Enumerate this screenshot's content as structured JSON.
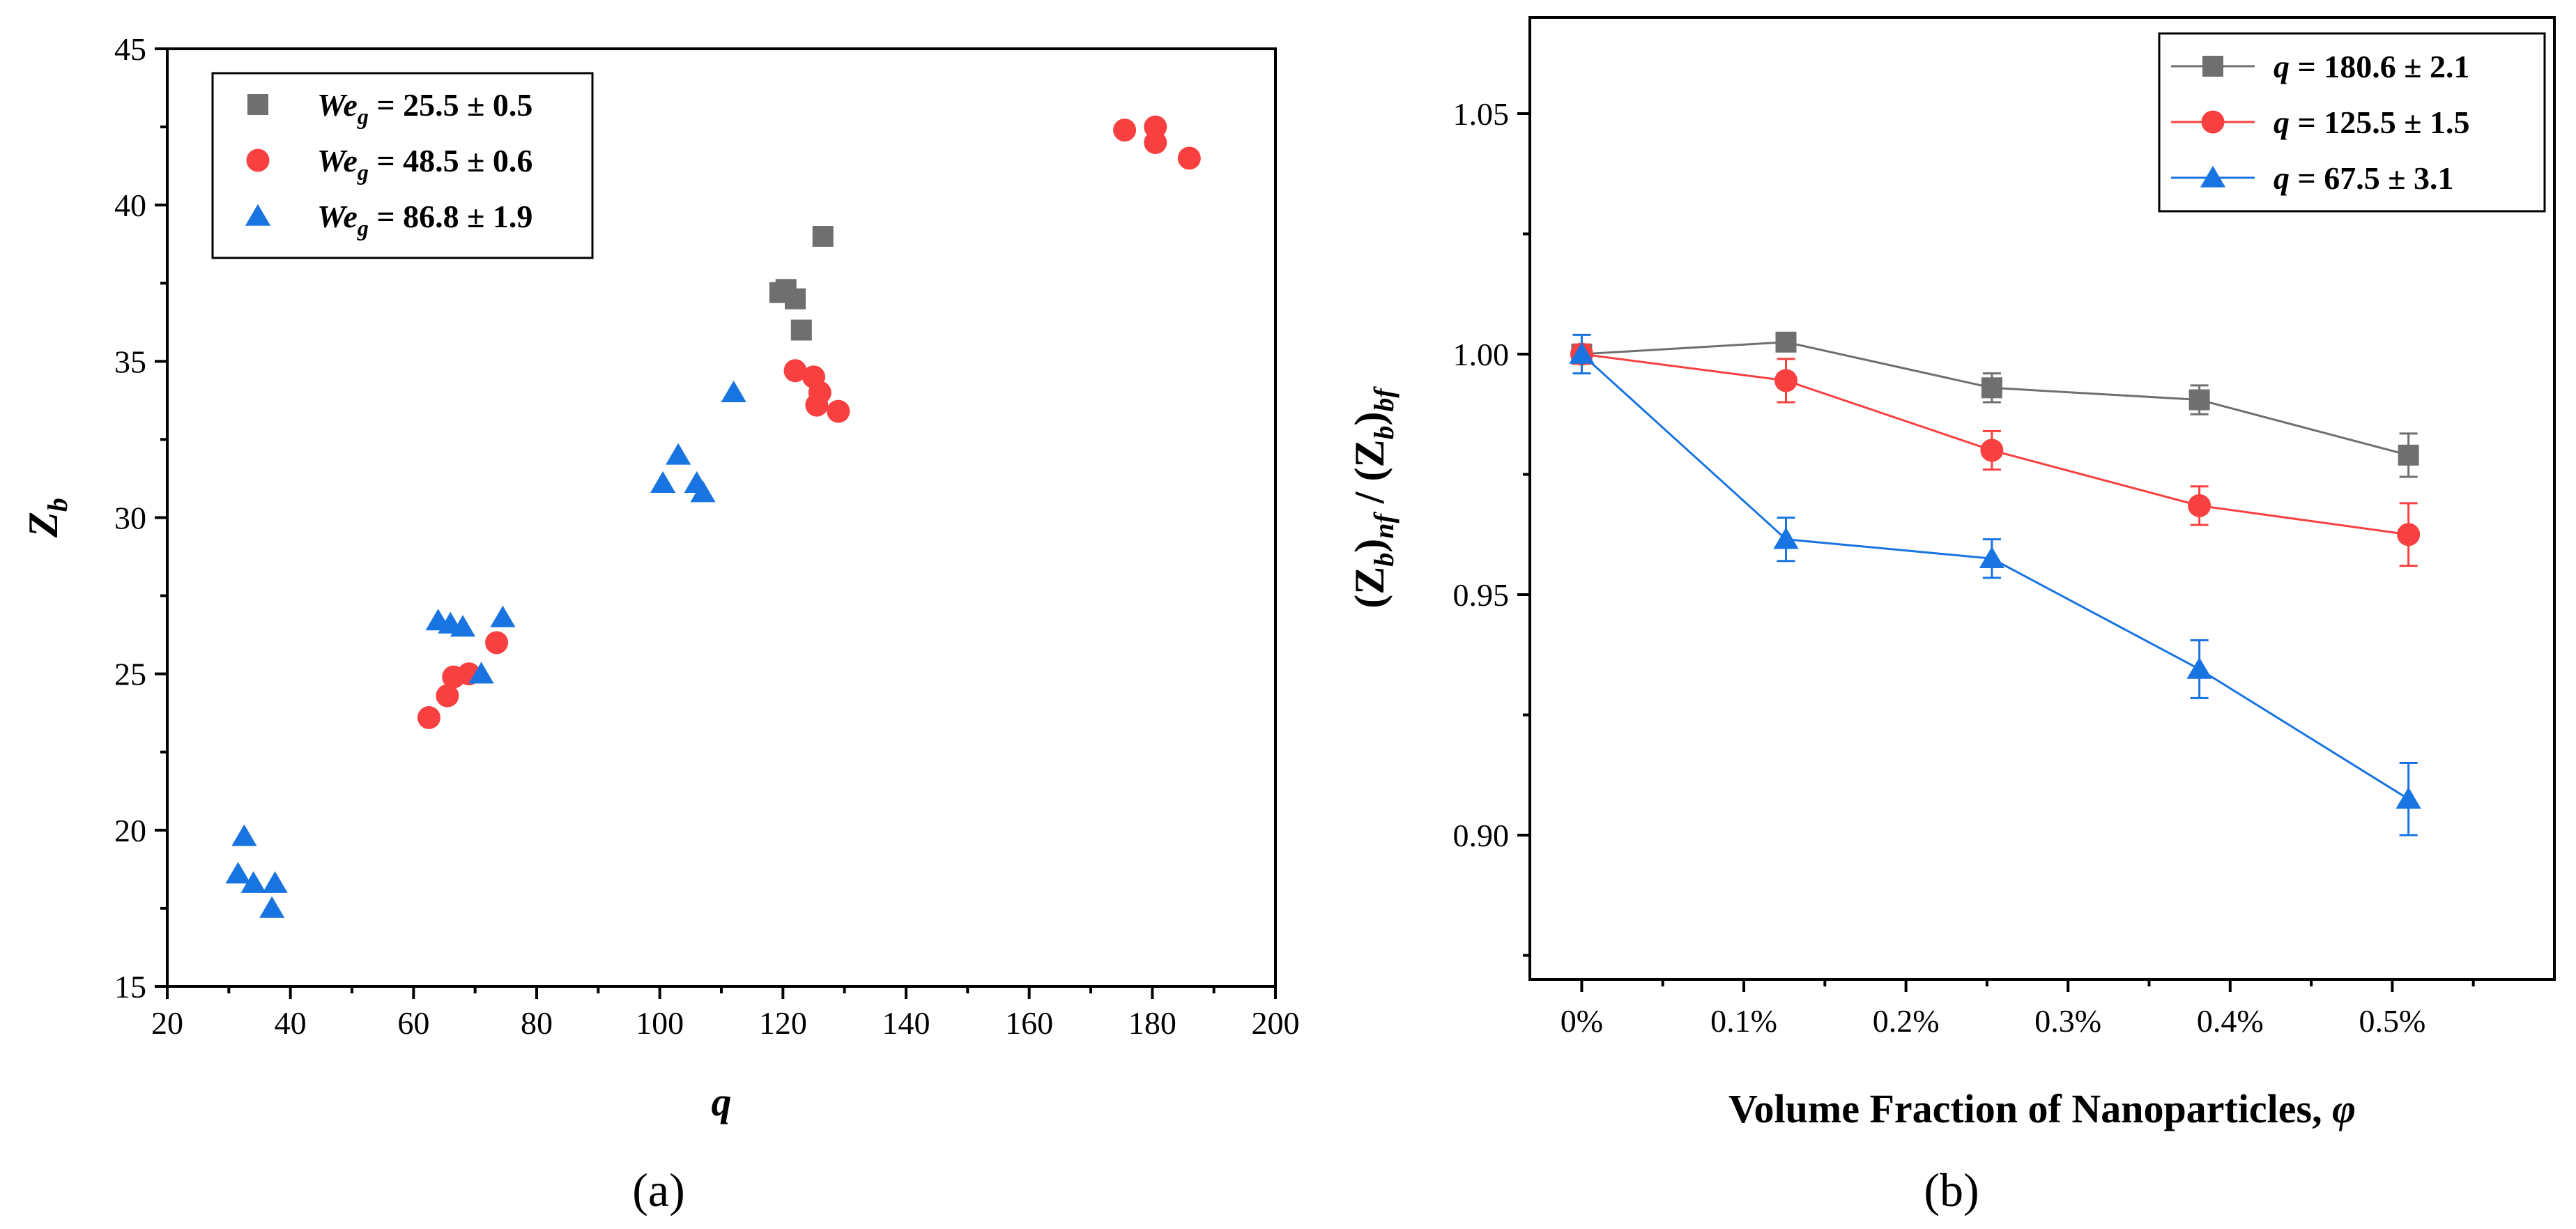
{
  "chart_data": [
    {
      "id": "a",
      "type": "scatter",
      "caption": "(a)",
      "xlabel": "q",
      "ylabel_main": "Z",
      "ylabel_sub": "b",
      "xlim": [
        20,
        200
      ],
      "ylim": [
        15,
        45
      ],
      "xticks": [
        20,
        40,
        60,
        80,
        100,
        120,
        140,
        160,
        180,
        200
      ],
      "yticks": [
        15,
        20,
        25,
        30,
        35,
        40,
        45
      ],
      "legend_position": "top-left",
      "series": [
        {
          "name": "We_g = 25.5 ± 0.5",
          "legend_var": "We",
          "legend_sub": "g",
          "legend_value": " = 25.5 ± 0.5",
          "marker": "square",
          "color": "#6f6f6f",
          "points": [
            [
              119.5,
              37.2
            ],
            [
              120.5,
              37.3
            ],
            [
              122,
              37.0
            ],
            [
              123,
              36.0
            ],
            [
              126.5,
              39.0
            ]
          ]
        },
        {
          "name": "We_g = 48.5 ± 0.6",
          "legend_var": "We",
          "legend_sub": "g",
          "legend_value": " = 48.5 ± 0.6",
          "marker": "circle",
          "color": "#f84040",
          "points": [
            [
              62.5,
              23.6
            ],
            [
              65.5,
              24.3
            ],
            [
              66.5,
              24.9
            ],
            [
              69,
              25.0
            ],
            [
              73.5,
              26.0
            ],
            [
              122,
              34.7
            ],
            [
              125,
              34.5
            ],
            [
              126,
              34.0
            ],
            [
              125.5,
              33.6
            ],
            [
              129,
              33.4
            ],
            [
              175.5,
              42.4
            ],
            [
              180.5,
              42.5
            ],
            [
              180.5,
              42.0
            ],
            [
              186,
              41.5
            ]
          ]
        },
        {
          "name": "We_g = 86.8 ± 1.9",
          "legend_var": "We",
          "legend_sub": "g",
          "legend_value": " = 86.8 ± 1.9",
          "marker": "triangle",
          "color": "#1874e0",
          "points": [
            [
              32.5,
              19.8
            ],
            [
              31.5,
              18.6
            ],
            [
              34,
              18.3
            ],
            [
              37.5,
              18.3
            ],
            [
              37,
              17.5
            ],
            [
              64,
              26.7
            ],
            [
              66,
              26.6
            ],
            [
              68,
              26.5
            ],
            [
              74.5,
              26.8
            ],
            [
              71,
              25.0
            ],
            [
              100.5,
              31.1
            ],
            [
              103,
              32.0
            ],
            [
              106,
              31.1
            ],
            [
              107,
              30.8
            ],
            [
              112,
              34.0
            ]
          ]
        }
      ]
    },
    {
      "id": "b",
      "type": "line",
      "caption": "(b)",
      "xlabel": "Volume Fraction of Nanoparticles, ",
      "xlabel_symbol": "φ",
      "ylabel": "(Z_b)_nf / (Z_b)_bf",
      "ylabel_parts": {
        "open": "(Z",
        "sub1": "b",
        "close1": ")",
        "sub2": "nf",
        "slash": " / (Z",
        "sub3": "b",
        "close2": ")",
        "sub4": "bf"
      },
      "categories": [
        "0%",
        "0.1%",
        "0.2%",
        "0.3%",
        "0.4%",
        "0.5%"
      ],
      "x_domain": [
        -0.032,
        0.6
      ],
      "x_tick_values": [
        0,
        0.1,
        0.2,
        0.3,
        0.4,
        0.5
      ],
      "ylim": [
        0.87,
        1.07
      ],
      "yticks": [
        0.9,
        0.95,
        1.0,
        1.05
      ],
      "ytick_labels": [
        "0.90",
        "0.95",
        "1.00",
        "1.05"
      ],
      "legend_position": "top-right",
      "series": [
        {
          "name": "q = 180.6 ± 2.1",
          "legend_var": "q",
          "legend_value": " = 180.6 ± 2.1",
          "marker": "square",
          "color": "#6f6f6f",
          "x": [
            0,
            0.126,
            0.253,
            0.381,
            0.51
          ],
          "y": [
            1.0,
            1.0025,
            0.993,
            0.9905,
            0.979
          ],
          "err": [
            0.002,
            0.0015,
            0.003,
            0.003,
            0.0045
          ]
        },
        {
          "name": "q = 125.5 ± 1.5",
          "legend_var": "q",
          "legend_value": " = 125.5 ± 1.5",
          "marker": "circle",
          "color": "#f84040",
          "x": [
            0,
            0.126,
            0.253,
            0.381,
            0.51
          ],
          "y": [
            1.0,
            0.9945,
            0.98,
            0.9685,
            0.9625
          ],
          "err": [
            0.002,
            0.0045,
            0.004,
            0.004,
            0.0065
          ]
        },
        {
          "name": "q = 67.5 ± 3.1",
          "legend_var": "q",
          "legend_value": " = 67.5 ± 3.1",
          "marker": "triangle",
          "color": "#1874e0",
          "x": [
            0,
            0.126,
            0.253,
            0.381,
            0.51
          ],
          "y": [
            1.0,
            0.9615,
            0.9575,
            0.9345,
            0.9075
          ],
          "err": [
            0.004,
            0.0045,
            0.004,
            0.006,
            0.0075
          ]
        }
      ]
    }
  ]
}
